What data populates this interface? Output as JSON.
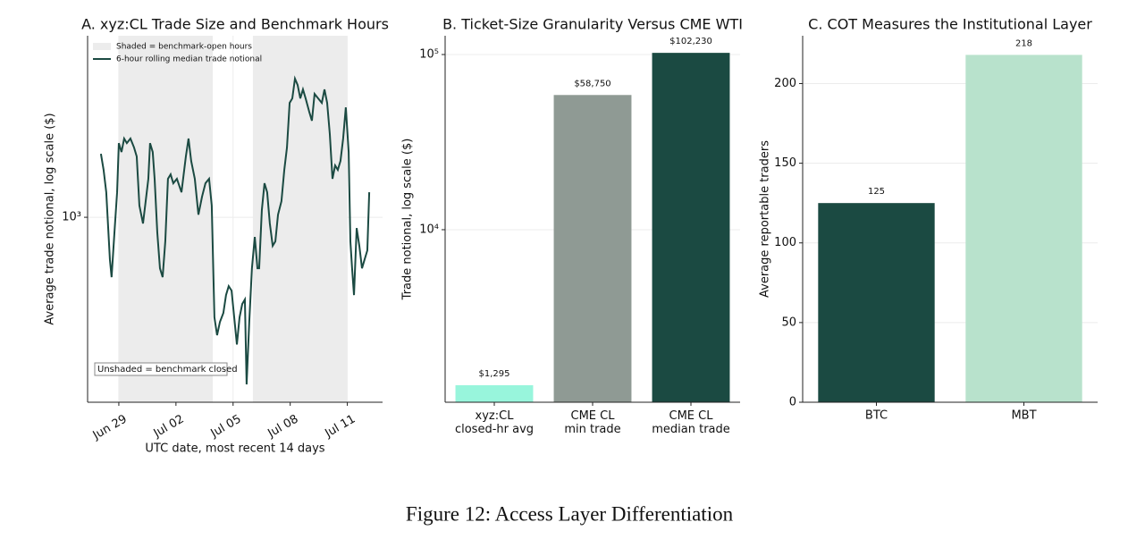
{
  "caption": "Figure 12: Access Layer Differentiation",
  "chart_data": [
    {
      "type": "line",
      "title": "A. xyz:CL Trade Size and Benchmark Hours",
      "xlabel": "UTC date, most recent 14 days",
      "ylabel": "Average trade notional, log scale ($)",
      "log_scale_y": true,
      "grid": true,
      "legend": "upper left",
      "xlim": [
        -1.64,
        13.85
      ],
      "ylim": [
        304,
        3218
      ],
      "xticks": [
        {
          "value": 0,
          "label": "Jun 29"
        },
        {
          "value": 3,
          "label": "Jul 02"
        },
        {
          "value": 6,
          "label": "Jul 05"
        },
        {
          "value": 9,
          "label": "Jul 08"
        },
        {
          "value": 12,
          "label": "Jul 11"
        }
      ],
      "yticks": [
        {
          "value": 1000,
          "label": "10³"
        }
      ],
      "shade": {
        "name": "Shaded = benchmark-open hours",
        "color": "#ececec",
        "spans": [
          [
            0,
            4.93
          ],
          [
            7.04,
            11.97
          ]
        ]
      },
      "annotation": "Unshaded = benchmark closed",
      "x": [
        -0.94,
        -0.8,
        -0.66,
        -0.47,
        -0.38,
        -0.23,
        -0.09,
        0,
        0.14,
        0.28,
        0.42,
        0.61,
        0.8,
        0.94,
        1.08,
        1.27,
        1.41,
        1.55,
        1.64,
        1.78,
        1.88,
        2.02,
        2.16,
        2.3,
        2.44,
        2.58,
        2.72,
        2.86,
        3.05,
        3.29,
        3.52,
        3.66,
        3.8,
        3.99,
        4.18,
        4.37,
        4.55,
        4.74,
        4.88,
        5.02,
        5.16,
        5.31,
        5.49,
        5.63,
        5.77,
        5.92,
        6.06,
        6.2,
        6.34,
        6.48,
        6.62,
        6.71,
        6.85,
        6.99,
        7.14,
        7.28,
        7.37,
        7.51,
        7.65,
        7.79,
        7.93,
        8.08,
        8.22,
        8.36,
        8.54,
        8.69,
        8.83,
        8.97,
        9.11,
        9.25,
        9.39,
        9.53,
        9.67,
        9.81,
        10.0,
        10.14,
        10.28,
        10.47,
        10.66,
        10.8,
        10.94,
        11.08,
        11.22,
        11.36,
        11.5,
        11.64,
        11.78,
        11.92,
        12.07,
        12.16,
        12.25,
        12.35,
        12.49,
        12.63,
        12.77,
        12.91,
        13.05,
        13.15
      ],
      "series": [
        {
          "name": "6-hour rolling median trade notional",
          "color": "#1b4a42",
          "values": [
            1505,
            1357,
            1175,
            763,
            680,
            907,
            1175,
            1612,
            1522,
            1660,
            1612,
            1660,
            1567,
            1479,
            1078,
            961,
            1109,
            1281,
            1612,
            1522,
            1281,
            907,
            720,
            680,
            856,
            1281,
            1318,
            1245,
            1281,
            1175,
            1479,
            1660,
            1437,
            1281,
            1017,
            1142,
            1245,
            1281,
            1078,
            525,
            468,
            510,
            540,
            606,
            642,
            624,
            525,
            441,
            525,
            572,
            589,
            341,
            510,
            720,
            881,
            720,
            720,
            1047,
            1245,
            1175,
            961,
            832,
            856,
            1017,
            1109,
            1357,
            1567,
            2089,
            2150,
            2441,
            2344,
            2150,
            2278,
            2150,
            1972,
            1862,
            2213,
            2150,
            2089,
            2278,
            2089,
            1708,
            1281,
            1396,
            1357,
            1437,
            1660,
            2029,
            1522,
            856,
            720,
            606,
            933,
            832,
            720,
            763,
            808,
            1175
          ]
        }
      ]
    },
    {
      "type": "bar",
      "title": "B. Ticket-Size Granularity Versus CME WTI",
      "ylabel": "Trade notional, log scale ($)",
      "log_scale_y": true,
      "grid": true,
      "ylim": [
        1035,
        128000
      ],
      "yticks": [
        {
          "value": 10000,
          "label": "10⁴"
        },
        {
          "value": 100000,
          "label": "10⁵"
        }
      ],
      "categories": [
        "xyz:CL\nclosed-hr avg",
        "CME CL\nmin trade",
        "CME CL\nmedian trade"
      ],
      "values": [
        1295,
        58750,
        102230
      ],
      "value_labels": [
        "$1,295",
        "$58,750",
        "$102,230"
      ],
      "colors": [
        "#98f5dc",
        "#8f9a94",
        "#1b4a42"
      ]
    },
    {
      "type": "bar",
      "title": "C. COT Measures the Institutional Layer",
      "ylabel": "Average reportable traders",
      "log_scale_y": false,
      "grid": true,
      "ylim": [
        0,
        230
      ],
      "yticks": [
        0,
        50,
        100,
        150,
        200
      ],
      "categories": [
        "BTC",
        "MBT"
      ],
      "values": [
        125,
        218
      ],
      "colors": [
        "#1b4a42",
        "#b8e2cc"
      ]
    }
  ]
}
